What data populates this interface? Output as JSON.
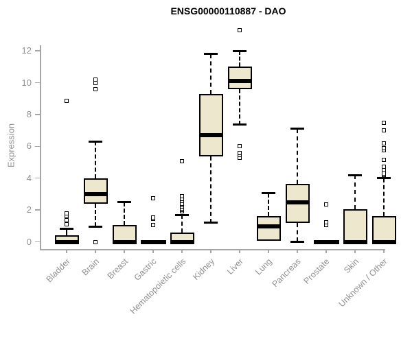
{
  "chart_data": {
    "type": "boxplot",
    "title": "ENSG00000110887 - DAO",
    "ylabel": "Expression",
    "ylim": [
      0,
      12
    ],
    "yticks": [
      0,
      2,
      4,
      6,
      8,
      10,
      12
    ],
    "grid": false,
    "categories": [
      "Bladder",
      "Brain",
      "Breast",
      "Gastric",
      "Hematopoietic cells",
      "Kidney",
      "Liver",
      "Lung",
      "Pancreas",
      "Prostate",
      "Skin",
      "Unknown / Other"
    ],
    "series": [
      {
        "category": "Bladder",
        "q1": 0,
        "median": 0,
        "q3": 0.4,
        "whisker_low": 0,
        "whisker_high": 0.8,
        "outliers": [
          1.1,
          1.35,
          1.6,
          1.8,
          8.85
        ]
      },
      {
        "category": "Brain",
        "q1": 2.4,
        "median": 3.0,
        "q3": 4.0,
        "whisker_low": 0.95,
        "whisker_high": 6.3,
        "outliers": [
          0,
          9.6,
          10.0,
          10.2
        ]
      },
      {
        "category": "Breast",
        "q1": 0,
        "median": 0,
        "q3": 1.05,
        "whisker_low": 0,
        "whisker_high": 2.5,
        "outliers": []
      },
      {
        "category": "Gastric",
        "q1": 0,
        "median": 0,
        "q3": 0,
        "whisker_low": 0,
        "whisker_high": 0,
        "outliers": [
          1.05,
          1.45,
          1.55,
          2.75
        ]
      },
      {
        "category": "Hematopoietic cells",
        "q1": 0,
        "median": 0,
        "q3": 0.6,
        "whisker_low": 0,
        "whisker_high": 1.7,
        "outliers": [
          1.9,
          2.0,
          2.1,
          2.2,
          2.3,
          2.4,
          2.55,
          2.7,
          2.85,
          5.05
        ]
      },
      {
        "category": "Kidney",
        "q1": 5.35,
        "median": 6.7,
        "q3": 9.3,
        "whisker_low": 1.2,
        "whisker_high": 11.8,
        "outliers": []
      },
      {
        "category": "Liver",
        "q1": 9.6,
        "median": 10.1,
        "q3": 11.0,
        "whisker_low": 7.35,
        "whisker_high": 12.0,
        "outliers": [
          5.3,
          5.45,
          5.6,
          6.0,
          13.3
        ]
      },
      {
        "category": "Lung",
        "q1": 0.05,
        "median": 0.95,
        "q3": 1.6,
        "whisker_low": 0.05,
        "whisker_high": 3.05,
        "outliers": []
      },
      {
        "category": "Pancreas",
        "q1": 1.2,
        "median": 2.5,
        "q3": 3.65,
        "whisker_low": 0,
        "whisker_high": 7.1,
        "outliers": []
      },
      {
        "category": "Prostate",
        "q1": 0,
        "median": 0,
        "q3": 0,
        "whisker_low": 0,
        "whisker_high": 0,
        "outliers": [
          1.05,
          1.25,
          2.35
        ]
      },
      {
        "category": "Skin",
        "q1": 0,
        "median": 0,
        "q3": 2.05,
        "whisker_low": 0,
        "whisker_high": 4.2,
        "outliers": []
      },
      {
        "category": "Unknown / Other",
        "q1": 0,
        "median": 0,
        "q3": 1.6,
        "whisker_low": 0,
        "whisker_high": 4.0,
        "outliers": [
          4.2,
          4.3,
          4.5,
          4.7,
          5.15,
          5.75,
          5.9,
          6.2,
          7.0,
          7.5
        ]
      }
    ]
  },
  "colors": {
    "box_fill": "#EDE7CE",
    "box_border": "#000000",
    "median": "#000000",
    "axis": "#A6A6A6",
    "tick_text": "#909090",
    "title_text": "#000000",
    "background": "#FFFFFF"
  }
}
